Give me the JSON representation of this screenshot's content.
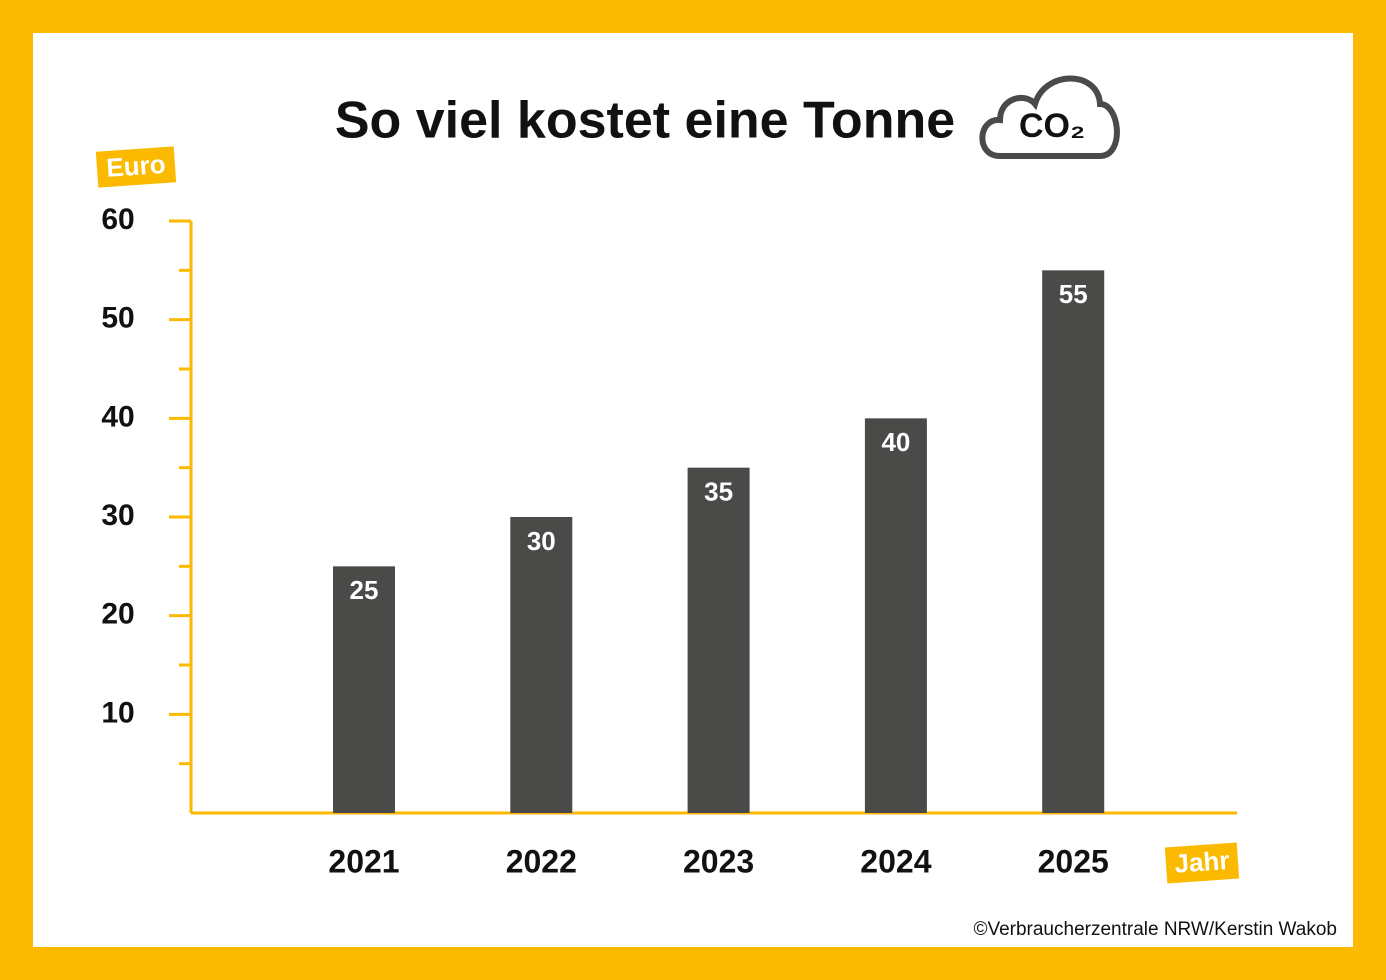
{
  "chart_data": {
    "type": "bar",
    "title": "So viel kostet eine Tonne",
    "icon_label": "CO₂",
    "y_label": "Euro",
    "x_label": "Jahr",
    "credit": "©Verbraucherzentrale NRW/Kerstin Wakob",
    "categories": [
      "2021",
      "2022",
      "2023",
      "2024",
      "2025"
    ],
    "values": [
      25,
      30,
      35,
      40,
      55
    ],
    "color": "#4a4a49",
    "axis_color": "#fbba00",
    "ylim": [
      0,
      60
    ],
    "yticks": [
      10,
      20,
      30,
      40,
      50,
      60
    ],
    "minor_yticks": [
      5,
      15,
      25,
      35,
      45,
      55
    ]
  }
}
